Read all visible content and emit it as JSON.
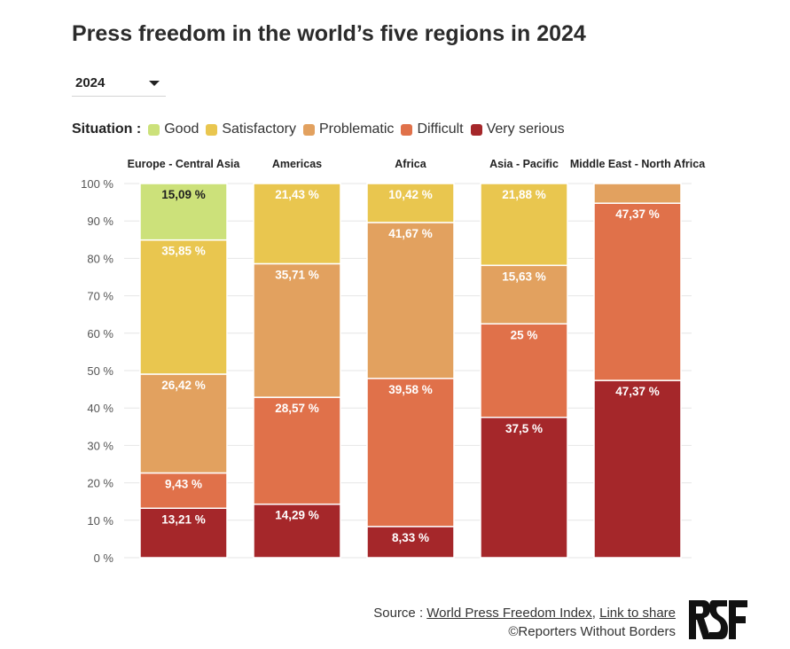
{
  "title": "Press freedom in the world’s five regions in 2024",
  "year_select": {
    "value": "2024"
  },
  "legend": {
    "label": "Situation :",
    "items": [
      {
        "name": "Good",
        "color": "#cce17a"
      },
      {
        "name": "Satisfactory",
        "color": "#e9c64f"
      },
      {
        "name": "Problematic",
        "color": "#e2a15f"
      },
      {
        "name": "Difficult",
        "color": "#e0714a"
      },
      {
        "name": "Very serious",
        "color": "#a5272a"
      }
    ]
  },
  "chart_data": {
    "type": "bar",
    "stacked": true,
    "categories": [
      "Europe - Central Asia",
      "Americas",
      "Africa",
      "Asia - Pacific",
      "Middle East - North Africa"
    ],
    "ylim": [
      0,
      100
    ],
    "yticks": [
      "0 %",
      "10 %",
      "20 %",
      "30 %",
      "40 %",
      "50 %",
      "60 %",
      "70 %",
      "80 %",
      "90 %",
      "100 %"
    ],
    "series": [
      {
        "name": "Very serious",
        "color": "#a5272a",
        "values": [
          13.21,
          14.29,
          8.33,
          37.5,
          47.37
        ],
        "labels": [
          "13,21 %",
          "14,29 %",
          "8,33 %",
          "37,5 %",
          "47,37 %"
        ]
      },
      {
        "name": "Difficult",
        "color": "#e0714a",
        "values": [
          9.43,
          28.57,
          39.58,
          25,
          47.37
        ],
        "labels": [
          "9,43 %",
          "28,57 %",
          "39,58 %",
          "25 %",
          "47,37 %"
        ]
      },
      {
        "name": "Problematic",
        "color": "#e2a15f",
        "values": [
          26.42,
          35.71,
          41.67,
          15.63,
          5.26
        ],
        "labels": [
          "26,42 %",
          "35,71 %",
          "41,67 %",
          "15,63 %",
          ""
        ]
      },
      {
        "name": "Satisfactory",
        "color": "#e9c64f",
        "values": [
          35.85,
          21.43,
          10.42,
          21.88,
          0
        ],
        "labels": [
          "35,85 %",
          "21,43 %",
          "10,42 %",
          "21,88 %",
          ""
        ]
      },
      {
        "name": "Good",
        "color": "#cce17a",
        "values": [
          15.09,
          0,
          0,
          0,
          0
        ],
        "labels": [
          "15,09 %",
          "",
          "",
          "",
          ""
        ]
      }
    ]
  },
  "footer": {
    "source_prefix": "Source :",
    "source_link": "World Press Freedom Index",
    "separator": ",",
    "share_link": "Link to share",
    "copyright": "©Reporters Without Borders",
    "logo_alt": "RSF"
  }
}
